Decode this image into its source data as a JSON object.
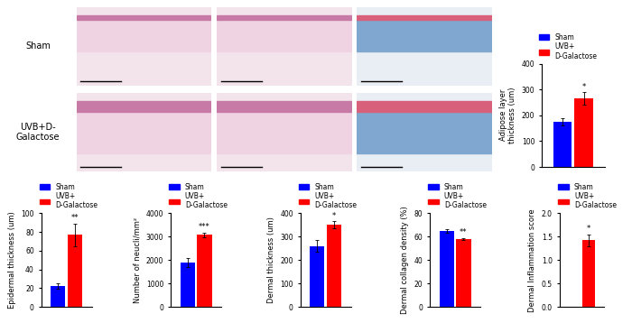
{
  "image_rows": [
    "Sham",
    "UVB+D-\nGalactose"
  ],
  "chart_data": [
    {
      "type": "bar",
      "y_label": "Adipose layer\nthickness (um)",
      "categories": [
        null
      ],
      "series": [
        {
          "name": "Sham",
          "color": "#0000ff",
          "values": [
            175
          ],
          "errors": [
            15
          ]
        },
        {
          "name": "UVB+\nD-Galactose",
          "color": "#ff0000",
          "values": [
            265
          ],
          "errors": [
            25
          ]
        }
      ],
      "ylim": [
        0,
        400
      ],
      "yticks": [
        0,
        100,
        200,
        300,
        400
      ],
      "significance": "*",
      "legend": "lower left",
      "tick_labels": "y"
    },
    {
      "type": "bar",
      "y_label": "Epidermal thickness (um)",
      "categories": [
        null
      ],
      "series": [
        {
          "name": "Sham",
          "color": "#0000ff",
          "values": [
            22
          ],
          "errors": [
            3
          ]
        },
        {
          "name": "UVB+\nD-Galactose",
          "color": "#ff0000",
          "values": [
            77
          ],
          "errors": [
            12
          ]
        }
      ],
      "ylim": [
        0,
        100
      ],
      "yticks": [
        0,
        20,
        40,
        60,
        80,
        100
      ],
      "significance": "**",
      "legend": "lower left",
      "tick_labels": "y"
    },
    {
      "type": "bar",
      "y_label": "Number of neucli/mm²",
      "categories": [
        null
      ],
      "series": [
        {
          "name": "Sham",
          "color": "#0000ff",
          "values": [
            1900
          ],
          "errors": [
            200
          ]
        },
        {
          "name": "UVB+\nD-Galactose",
          "color": "#ff0000",
          "values": [
            3080
          ],
          "errors": [
            100
          ]
        }
      ],
      "ylim": [
        0,
        4000
      ],
      "yticks": [
        0,
        1000,
        2000,
        3000,
        4000
      ],
      "significance": "***",
      "legend": "lower left",
      "tick_labels": "y"
    },
    {
      "type": "bar",
      "y_label": "Dermal thickness (um)",
      "categories": [
        null
      ],
      "series": [
        {
          "name": "Sham",
          "color": "#0000ff",
          "values": [
            260
          ],
          "errors": [
            25
          ]
        },
        {
          "name": "UVB+\nD-Galactose",
          "color": "#ff0000",
          "values": [
            350
          ],
          "errors": [
            15
          ]
        }
      ],
      "ylim": [
        0,
        400
      ],
      "yticks": [
        0,
        100,
        200,
        300,
        400
      ],
      "significance": "*",
      "legend": "lower left",
      "tick_labels": "y"
    },
    {
      "type": "bar",
      "y_label": "Dermal collagen density (%)",
      "categories": [
        null
      ],
      "series": [
        {
          "name": "Sham",
          "color": "#0000ff",
          "values": [
            65
          ],
          "errors": [
            1.5
          ]
        },
        {
          "name": "UVB+\nD-Galactose",
          "color": "#ff0000",
          "values": [
            58
          ],
          "errors": [
            1
          ]
        }
      ],
      "ylim": [
        0,
        80
      ],
      "yticks": [
        0,
        20,
        40,
        60,
        80
      ],
      "significance": "**",
      "legend": "lower left",
      "tick_labels": "y"
    },
    {
      "type": "bar",
      "y_label": "Dermal Inflammation score",
      "categories": [
        null
      ],
      "series": [
        {
          "name": "Sham",
          "color": "#0000ff",
          "values": [
            0
          ],
          "errors": [
            0
          ]
        },
        {
          "name": "UVB+\nD-Galactose",
          "color": "#ff0000",
          "values": [
            1.42
          ],
          "errors": [
            0.13
          ]
        }
      ],
      "ylim": [
        0,
        2.0
      ],
      "yticks": [
        {
          "value": 0,
          "label": "0.0"
        },
        {
          "value": 0.5,
          "label": "0.5"
        },
        {
          "value": 1.0,
          "label": "1.0"
        },
        {
          "value": 1.5,
          "label": "1.5"
        },
        {
          "value": 2.0,
          "label": "2.0"
        }
      ],
      "significance": "*",
      "legend": "lower left",
      "tick_labels": "y"
    }
  ]
}
